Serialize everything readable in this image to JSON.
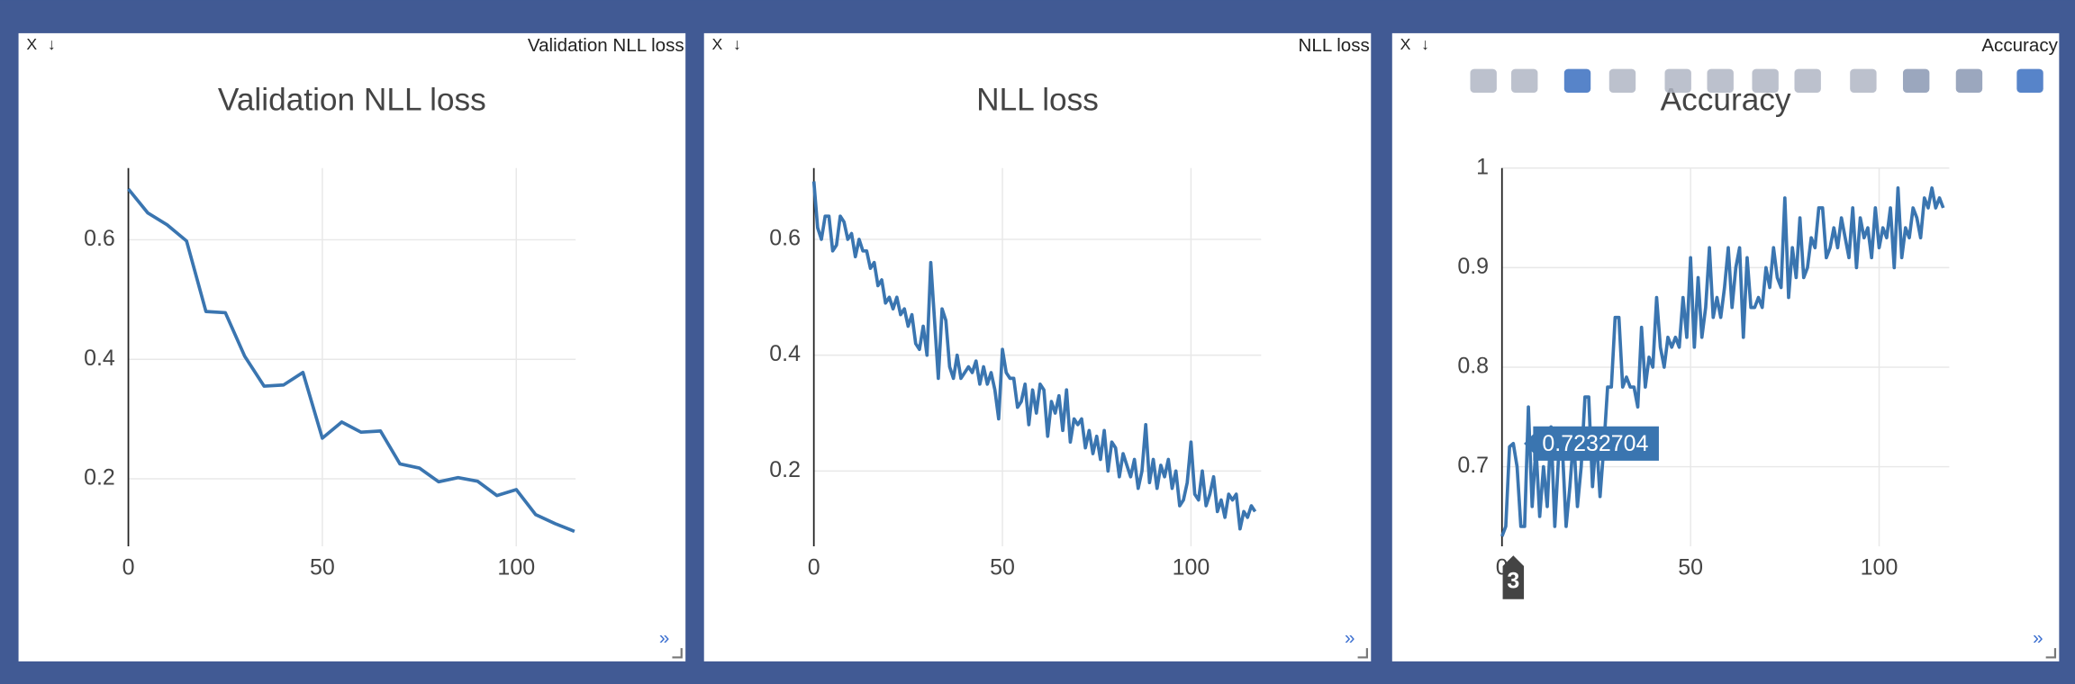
{
  "window_controls": {
    "close": "X",
    "download": "↓",
    "expand": "»"
  },
  "chart_data": [
    {
      "type": "line",
      "window_title": "Validation NLL loss",
      "title": "Validation NLL loss",
      "color": "#3a75b0",
      "x": [
        0,
        5,
        10,
        15,
        20,
        25,
        30,
        35,
        40,
        45,
        50,
        55,
        60,
        65,
        70,
        75,
        80,
        85,
        90,
        95,
        100,
        105,
        110,
        115
      ],
      "values": [
        0.685,
        0.645,
        0.625,
        0.598,
        0.48,
        0.478,
        0.405,
        0.355,
        0.357,
        0.378,
        0.268,
        0.295,
        0.278,
        0.28,
        0.225,
        0.218,
        0.195,
        0.202,
        0.196,
        0.172,
        0.182,
        0.14,
        0.125,
        0.112
      ],
      "xlim": [
        0,
        115.3
      ],
      "ylim": [
        0.087,
        0.72
      ],
      "xticks": [
        0,
        50,
        100
      ],
      "yticks": [
        0.2,
        0.4,
        0.6
      ],
      "grid": true
    },
    {
      "type": "line",
      "window_title": "NLL loss",
      "title": "NLL loss",
      "color": "#3a75b0",
      "x": [
        0,
        1,
        2,
        3,
        4,
        5,
        6,
        7,
        8,
        9,
        10,
        11,
        12,
        13,
        14,
        15,
        16,
        17,
        18,
        19,
        20,
        21,
        22,
        23,
        24,
        25,
        26,
        27,
        28,
        29,
        30,
        31,
        32,
        33,
        34,
        35,
        36,
        37,
        38,
        39,
        40,
        41,
        42,
        43,
        44,
        45,
        46,
        47,
        48,
        49,
        50,
        51,
        52,
        53,
        54,
        55,
        56,
        57,
        58,
        59,
        60,
        61,
        62,
        63,
        64,
        65,
        66,
        67,
        68,
        69,
        70,
        71,
        72,
        73,
        74,
        75,
        76,
        77,
        78,
        79,
        80,
        81,
        82,
        83,
        84,
        85,
        86,
        87,
        88,
        89,
        90,
        91,
        92,
        93,
        94,
        95,
        96,
        97,
        98,
        99,
        100,
        101,
        102,
        103,
        104,
        105,
        106,
        107,
        108,
        109,
        110,
        111,
        112,
        113,
        114,
        115,
        116,
        117
      ],
      "values": [
        0.7,
        0.62,
        0.6,
        0.64,
        0.64,
        0.58,
        0.59,
        0.64,
        0.63,
        0.6,
        0.61,
        0.57,
        0.6,
        0.58,
        0.58,
        0.55,
        0.56,
        0.52,
        0.53,
        0.49,
        0.5,
        0.48,
        0.5,
        0.47,
        0.48,
        0.45,
        0.47,
        0.42,
        0.41,
        0.45,
        0.4,
        0.56,
        0.46,
        0.36,
        0.48,
        0.46,
        0.38,
        0.36,
        0.4,
        0.36,
        0.37,
        0.38,
        0.37,
        0.39,
        0.35,
        0.38,
        0.35,
        0.37,
        0.34,
        0.29,
        0.41,
        0.37,
        0.36,
        0.36,
        0.31,
        0.32,
        0.35,
        0.28,
        0.34,
        0.3,
        0.35,
        0.34,
        0.26,
        0.32,
        0.3,
        0.33,
        0.27,
        0.34,
        0.25,
        0.29,
        0.28,
        0.29,
        0.24,
        0.27,
        0.23,
        0.26,
        0.22,
        0.27,
        0.2,
        0.25,
        0.24,
        0.19,
        0.23,
        0.21,
        0.19,
        0.22,
        0.17,
        0.2,
        0.28,
        0.18,
        0.22,
        0.17,
        0.21,
        0.19,
        0.22,
        0.17,
        0.2,
        0.14,
        0.15,
        0.18,
        0.25,
        0.16,
        0.15,
        0.2,
        0.14,
        0.16,
        0.19,
        0.13,
        0.15,
        0.12,
        0.16,
        0.15,
        0.16,
        0.1,
        0.13,
        0.12,
        0.14,
        0.13
      ],
      "xlim": [
        0,
        118.6
      ],
      "ylim": [
        0.07,
        0.723
      ],
      "xticks": [
        0,
        50,
        100
      ],
      "yticks": [
        0.2,
        0.4,
        0.6
      ],
      "grid": true
    },
    {
      "type": "line",
      "window_title": "Accuracy",
      "title": "Accuracy",
      "color": "#3a75b0",
      "x": [
        0,
        1,
        2,
        3,
        4,
        5,
        6,
        7,
        8,
        9,
        10,
        11,
        12,
        13,
        14,
        15,
        16,
        17,
        18,
        19,
        20,
        21,
        22,
        23,
        24,
        25,
        26,
        27,
        28,
        29,
        30,
        31,
        32,
        33,
        34,
        35,
        36,
        37,
        38,
        39,
        40,
        41,
        42,
        43,
        44,
        45,
        46,
        47,
        48,
        49,
        50,
        51,
        52,
        53,
        54,
        55,
        56,
        57,
        58,
        59,
        60,
        61,
        62,
        63,
        64,
        65,
        66,
        67,
        68,
        69,
        70,
        71,
        72,
        73,
        74,
        75,
        76,
        77,
        78,
        79,
        80,
        81,
        82,
        83,
        84,
        85,
        86,
        87,
        88,
        89,
        90,
        91,
        92,
        93,
        94,
        95,
        96,
        97,
        98,
        99,
        100,
        101,
        102,
        103,
        104,
        105,
        106,
        107,
        108,
        109,
        110,
        111,
        112,
        113,
        114,
        115,
        116,
        117
      ],
      "values": [
        0.63,
        0.64,
        0.72,
        0.7232704,
        0.7,
        0.64,
        0.64,
        0.76,
        0.66,
        0.72,
        0.65,
        0.7,
        0.66,
        0.74,
        0.64,
        0.71,
        0.72,
        0.64,
        0.68,
        0.73,
        0.66,
        0.7,
        0.77,
        0.77,
        0.68,
        0.73,
        0.67,
        0.72,
        0.78,
        0.78,
        0.85,
        0.85,
        0.78,
        0.79,
        0.78,
        0.78,
        0.76,
        0.84,
        0.78,
        0.81,
        0.8,
        0.87,
        0.82,
        0.8,
        0.83,
        0.82,
        0.83,
        0.82,
        0.87,
        0.83,
        0.91,
        0.82,
        0.89,
        0.83,
        0.86,
        0.92,
        0.85,
        0.87,
        0.85,
        0.88,
        0.92,
        0.86,
        0.9,
        0.92,
        0.83,
        0.91,
        0.86,
        0.86,
        0.87,
        0.86,
        0.9,
        0.88,
        0.92,
        0.89,
        0.88,
        0.97,
        0.87,
        0.92,
        0.89,
        0.95,
        0.89,
        0.9,
        0.93,
        0.92,
        0.96,
        0.96,
        0.91,
        0.92,
        0.94,
        0.92,
        0.95,
        0.93,
        0.91,
        0.96,
        0.9,
        0.95,
        0.93,
        0.94,
        0.91,
        0.96,
        0.92,
        0.94,
        0.93,
        0.96,
        0.9,
        0.98,
        0.91,
        0.94,
        0.93,
        0.96,
        0.95,
        0.93,
        0.97,
        0.96,
        0.98,
        0.96,
        0.97,
        0.96
      ],
      "xlim": [
        0,
        118.6
      ],
      "ylim": [
        0.62,
        1
      ],
      "xticks": [
        0,
        50,
        100
      ],
      "yticks": [
        0.7,
        0.8,
        0.9,
        1
      ],
      "grid": true,
      "hover": {
        "x": 3,
        "y": 0.7232704
      }
    }
  ]
}
